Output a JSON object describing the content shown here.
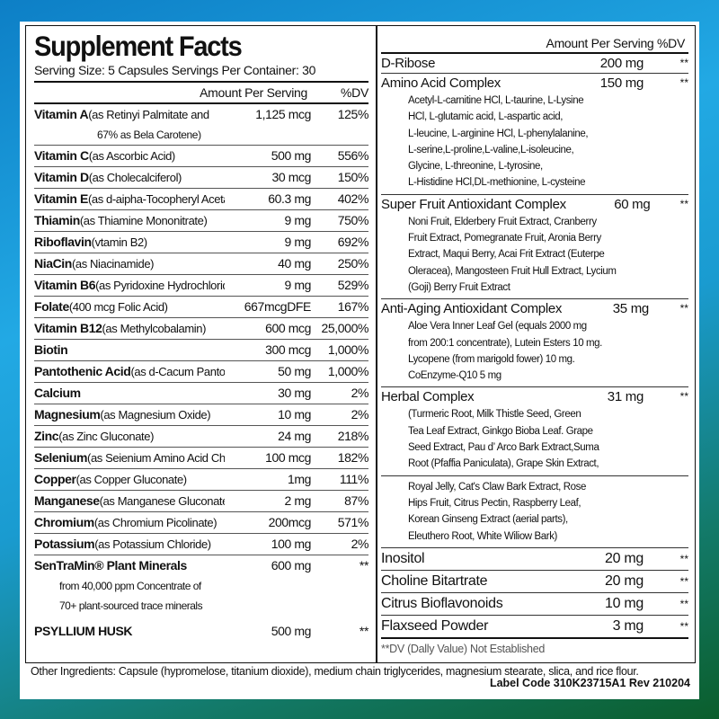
{
  "title": "Supplement Facts",
  "serving": "Serving Size: 5 Capsules Servings Per Container: 30",
  "left_header": {
    "amount": "Amount Per Serving",
    "dv": "%DV"
  },
  "left_rows": [
    {
      "name": "Vitamin A",
      "desc": "(as Retinyi Palmitate and",
      "amount": "1,125 mcg",
      "dv": "125%",
      "sub": [
        "67% as Bela Carotene)"
      ]
    },
    {
      "name": "Vitamin C",
      "desc": "(as Ascorbic Acid)",
      "amount": "500 mg",
      "dv": "556%"
    },
    {
      "name": "Vitamin D",
      "desc": "(as Cholecalciferol)",
      "amount": "30 mcg",
      "dv": "150%"
    },
    {
      "name": "Vitamin E",
      "desc": "(as d-aipha-Tocopheryl Acetate)",
      "amount": "60.3 mg",
      "dv": "402%"
    },
    {
      "name": "Thiamin",
      "desc": "(as Thiamine Mononitrate)",
      "amount": "9 mg",
      "dv": "750%"
    },
    {
      "name": "Riboflavin",
      "desc": "(vtamin B2)",
      "amount": "9 mg",
      "dv": "692%"
    },
    {
      "name": "NiaCin",
      "desc": "(as Niacinamide)",
      "amount": "40 mg",
      "dv": "250%"
    },
    {
      "name": "Vitamin B6",
      "desc": "(as Pyridoxine Hydrochloride)",
      "amount": "9 mg",
      "dv": "529%"
    },
    {
      "name": "Folate",
      "desc": "(400 mcg Folic Acid)",
      "amount": "667mcgDFE",
      "dv": "167%"
    },
    {
      "name": "Vitamin B12",
      "desc": "(as Methylcobalamin)",
      "amount": "600 mcg",
      "dv": "25,000%"
    },
    {
      "name": "Biotin",
      "desc": "",
      "amount": "300 mcg",
      "dv": "1,000%"
    },
    {
      "name": "Pantothenic Acid",
      "desc": "(as d-Cacum Pantothenate)",
      "amount": "50 mg",
      "dv": "1,000%"
    },
    {
      "name": "Calcium",
      "desc": "",
      "amount": "30 mg",
      "dv": "2%"
    },
    {
      "name": "Magnesium",
      "desc": "(as Magnesium Oxide)",
      "amount": "10 mg",
      "dv": "2%"
    },
    {
      "name": "Zinc",
      "desc": "(as Zinc Gluconate)",
      "amount": "24 mg",
      "dv": "218%"
    },
    {
      "name": "Selenium",
      "desc": "(as Seienium Amino Acid Chelate)",
      "amount": "100 mcg",
      "dv": "182%"
    },
    {
      "name": "Copper",
      "desc": "(as Copper Gluconate)",
      "amount": "1mg",
      "dv": "111%"
    },
    {
      "name": "Manganese",
      "desc": "(as Manganese Gluconate)",
      "amount": "2 mg",
      "dv": "87%"
    },
    {
      "name": "Chromium",
      "desc": "(as Chromium Picolinate)",
      "amount": "200mcg",
      "dv": "571%"
    },
    {
      "name": "Potassium",
      "desc": "(as Potassium Chloride)",
      "amount": "100 mg",
      "dv": "2%"
    },
    {
      "name": "SenTraMin® Plant Minerals",
      "desc": "",
      "amount": "600 mg",
      "dv": "**",
      "sub2": [
        "from 40,000 ppm Concentrate of",
        "70+ plant-sourced trace minerals"
      ],
      "noborder": true
    },
    {
      "name": "PSYLLIUM HUSK",
      "desc": "",
      "amount": "500 mg",
      "dv": "**",
      "noborder": true,
      "gap": true
    }
  ],
  "right_header": "Amount Per Serving %DV",
  "right_rows": [
    {
      "name": "D-Ribose",
      "amount": "200 mg",
      "dv": "**"
    },
    {
      "name": "Amino Acid Complex",
      "amount": "150 mg",
      "dv": "**",
      "sub": [
        "Acetyl-L-carnitine HCl, L-taurine, L-Lysine",
        "HCl, L-glutamic acid, L-aspartic acid,",
        "L-leucine, L-arginine HCl, L-phenylalanine,",
        "L-serine,L-proline,L-valine,L-isoleucine,",
        "Glycine, L-threonine, L-tyrosine,",
        "L-Histidine HCl,DL-methionine, L-cysteine"
      ]
    },
    {
      "name": "Super Fruit Antioxidant Complex",
      "amount": "60 mg",
      "dv": "**",
      "sub": [
        "Noni Fruit, Elderbery Fruit Extract, Cranberry",
        "Fruit Extract, Pomegranate Fruit, Aronia Berry",
        "Extract, Maqui Berry, Acai Frit Extract (Euterpe",
        "Oleracea), Mangosteen Fruit Hull Extract, Lycium",
        "(Goji) Berry Fruit Extract"
      ]
    },
    {
      "name": "Anti-Aging Antioxidant Complex",
      "amount": "35 mg",
      "dv": "**",
      "sub": [
        "Aloe Vera Inner Leaf Gel (equals 2000 mg",
        "from 200:1 concentrate), Lutein Esters 10 mg.",
        "Lycopene (from marigold fower) 10 mg.",
        "CoEnzyme-Q10 5 mg"
      ]
    },
    {
      "name": "Herbal Complex",
      "amount": "31 mg",
      "dv": "**",
      "sub": [
        "(Turmeric Root, Milk Thistle Seed, Green",
        "Tea Leaf Extract, Ginkgo Bioba Leaf. Grape",
        "Seed Extract, Pau d’  Arco Bark Extract,Suma",
        "Root (Pfaffia Paniculata), Grape Skin Extract,"
      ]
    },
    {
      "name": "",
      "amount": "",
      "dv": "",
      "sub": [
        "Royal Jelly, Cat's Claw Bark Extract, Rose",
        "Hips Fruit, Citrus Pectin, Raspberry Leaf,",
        "Korean Ginseng Extract (aerial parts),",
        "Eleuthero Root, White Wiliow Bark)"
      ]
    },
    {
      "name": "Inositol",
      "amount": "20 mg",
      "dv": "**",
      "big": true
    },
    {
      "name": "Choline Bitartrate",
      "amount": "20 mg",
      "dv": "**",
      "big": true
    },
    {
      "name": "Citrus Bioflavonoids",
      "amount": "10 mg",
      "dv": "**",
      "big": true
    },
    {
      "name": "Flaxseed Powder",
      "amount": "3 mg",
      "dv": "**",
      "big": true,
      "thick": true
    }
  ],
  "dv_note": "**DV (Dally Value) Not Established",
  "other_ingredients": "Other Ingredients: Capsule (hypromelose, titanium dioxide), medium chain triglycerides, magnesium stearate, slica, and rice flour.",
  "label_code": "Label Code 310K23715A1 Rev 210204",
  "colors": {
    "border_top": "#22a9e4",
    "border_bottom": "#0b5e2c",
    "text": "#111111"
  }
}
